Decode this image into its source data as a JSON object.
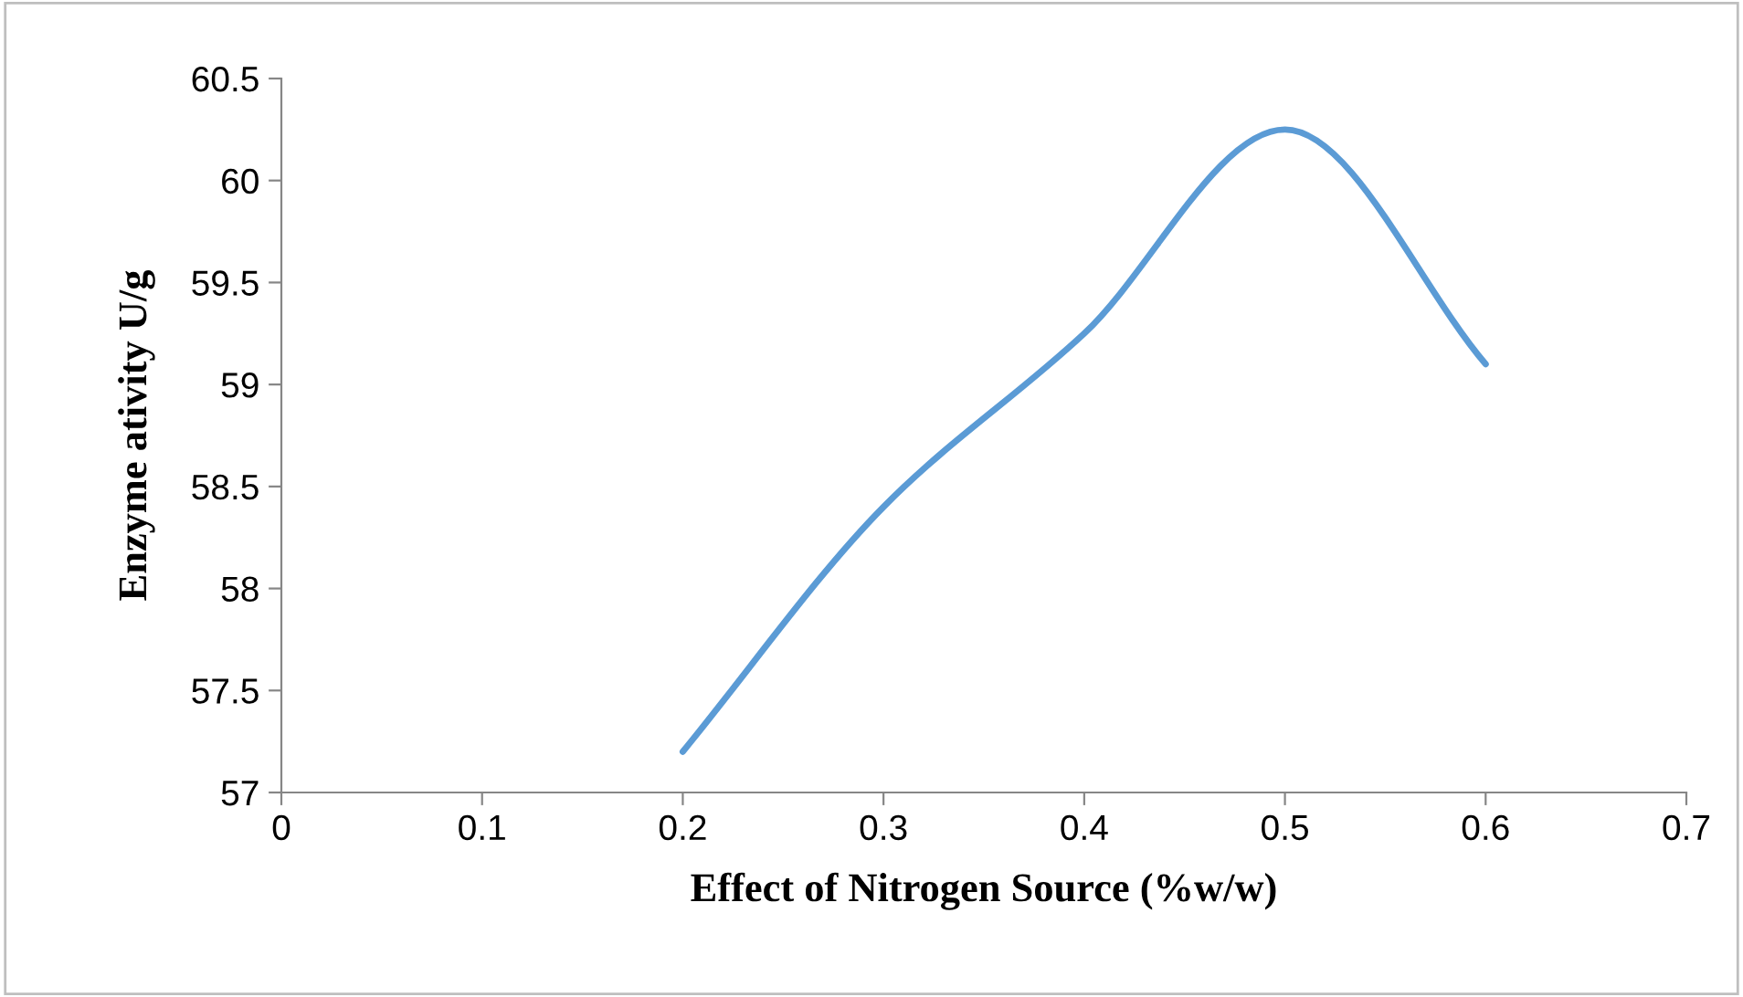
{
  "chart_data": {
    "type": "line",
    "xlabel": "Effect of Nitrogen Source (%w/w)",
    "ylabel": "Enzyme ativity U/g",
    "x": [
      0.2,
      0.3,
      0.4,
      0.5,
      0.6
    ],
    "series": [
      {
        "color": "#5b9bd5",
        "values": [
          57.2,
          58.4,
          59.25,
          60.25,
          59.1
        ]
      }
    ],
    "xlim": [
      0,
      0.7
    ],
    "xticks": [
      0,
      0.1,
      0.2,
      0.3,
      0.4,
      0.5,
      0.6,
      0.7
    ],
    "ylim": [
      57,
      60.5
    ],
    "yticks": [
      57,
      57.5,
      58,
      58.5,
      59,
      59.5,
      60,
      60.5
    ],
    "grid": false,
    "marker": "none",
    "line_style": "solid"
  }
}
